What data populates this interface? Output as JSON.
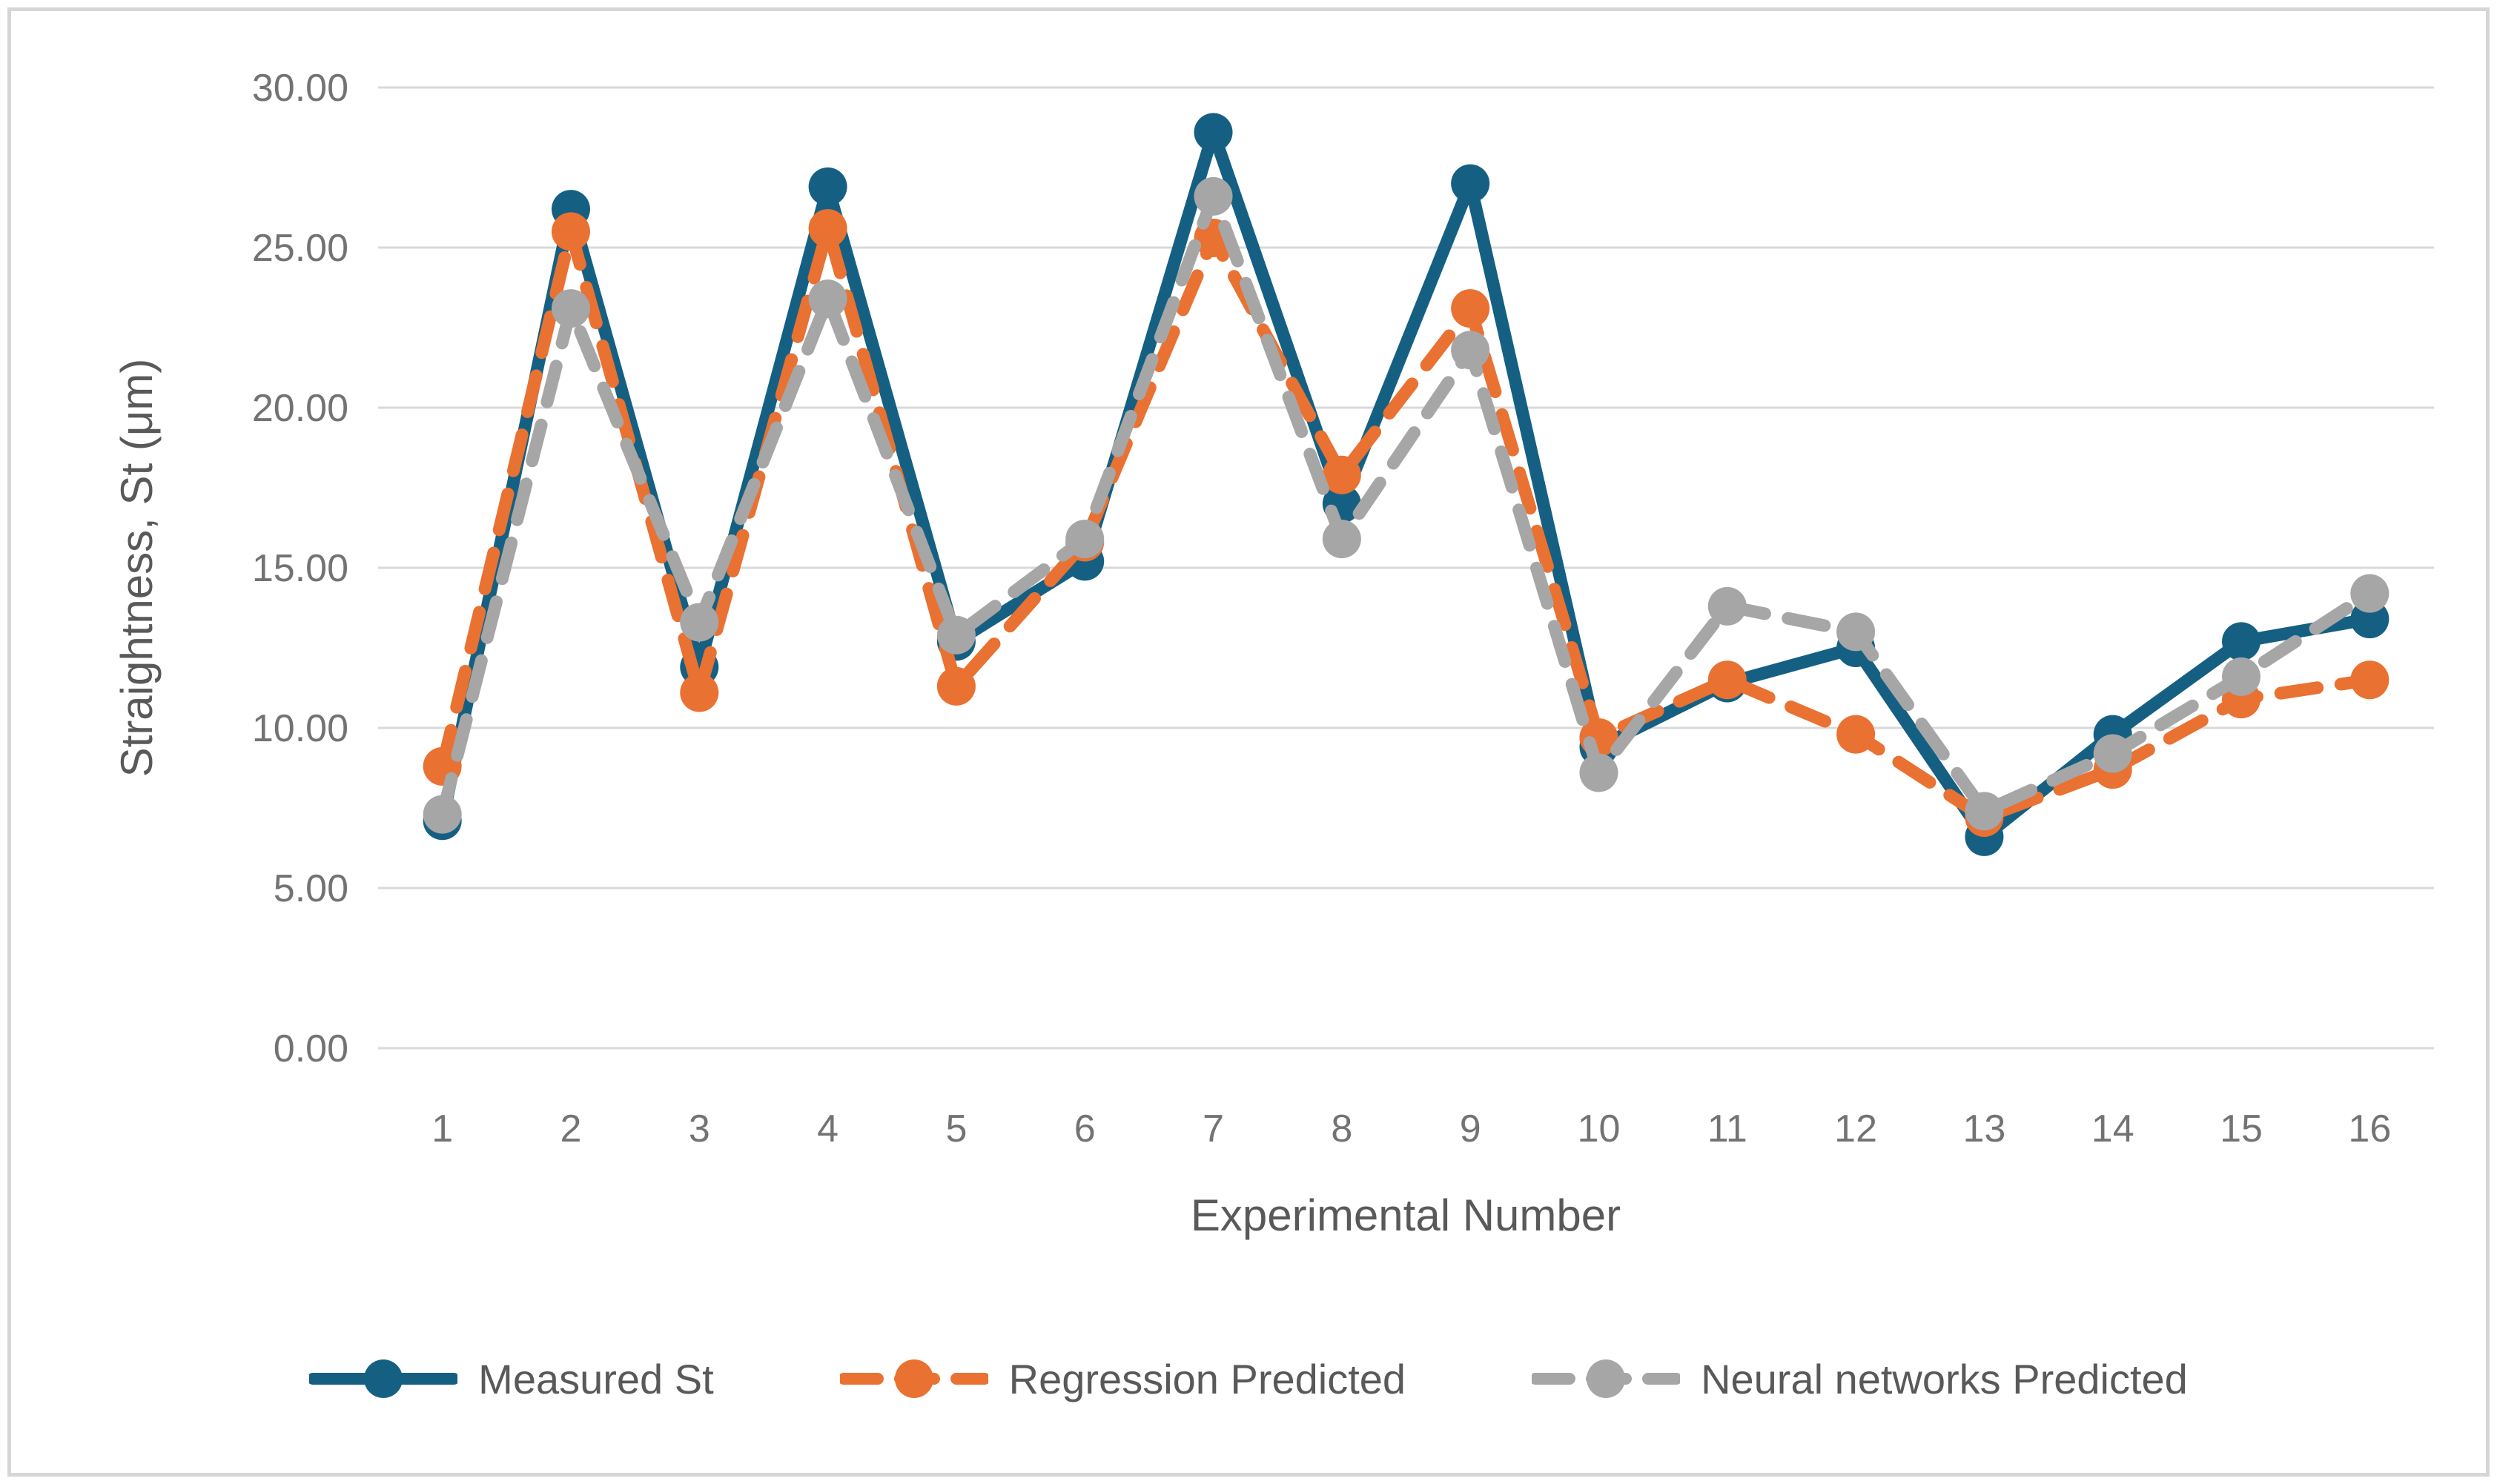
{
  "chart_data": {
    "type": "line",
    "title": "",
    "xlabel": "Experimental Number",
    "ylabel": "Straightness, St (μm)",
    "categories": [
      "1",
      "2",
      "3",
      "4",
      "5",
      "6",
      "7",
      "8",
      "9",
      "10",
      "11",
      "12",
      "13",
      "14",
      "15",
      "16"
    ],
    "ylim": [
      0,
      30
    ],
    "ytick_step": 5,
    "yticks": [
      {
        "value": 30,
        "label": "30.00"
      },
      {
        "value": 25,
        "label": "25.00"
      },
      {
        "value": 20,
        "label": "20.00"
      },
      {
        "value": 15,
        "label": "15.00"
      },
      {
        "value": 10,
        "label": "10.00"
      },
      {
        "value": 5,
        "label": "5.00"
      },
      {
        "value": 0,
        "label": "0.00"
      }
    ],
    "grid": true,
    "legend_position": "bottom",
    "series": [
      {
        "name": "Measured St",
        "color": "#156082",
        "style": "solid",
        "marker": "circle",
        "values": [
          7.1,
          26.2,
          11.9,
          26.9,
          12.7,
          15.2,
          28.6,
          17.0,
          27.0,
          9.4,
          11.4,
          12.5,
          6.6,
          9.8,
          12.7,
          13.4
        ]
      },
      {
        "name": "Regression Predicted",
        "color": "#E97132",
        "style": "dashed",
        "marker": "circle",
        "values": [
          8.8,
          25.5,
          11.1,
          25.6,
          11.3,
          15.8,
          25.3,
          17.9,
          23.1,
          9.7,
          11.5,
          9.8,
          7.2,
          8.7,
          10.9,
          11.5
        ]
      },
      {
        "name": "Neural networks Predicted",
        "color": "#A6A6A6",
        "style": "dashed",
        "marker": "circle",
        "values": [
          7.3,
          23.1,
          13.3,
          23.4,
          12.9,
          15.9,
          26.6,
          15.9,
          21.8,
          8.6,
          13.8,
          13.0,
          7.4,
          9.2,
          11.6,
          14.2
        ]
      }
    ]
  },
  "colors": {
    "gridline": "#D9D9D9",
    "tick_text": "#737373",
    "axis_title_text": "#595959",
    "legend_text": "#595959",
    "frame_border": "#D6D6D6",
    "background": "#FFFFFF"
  }
}
